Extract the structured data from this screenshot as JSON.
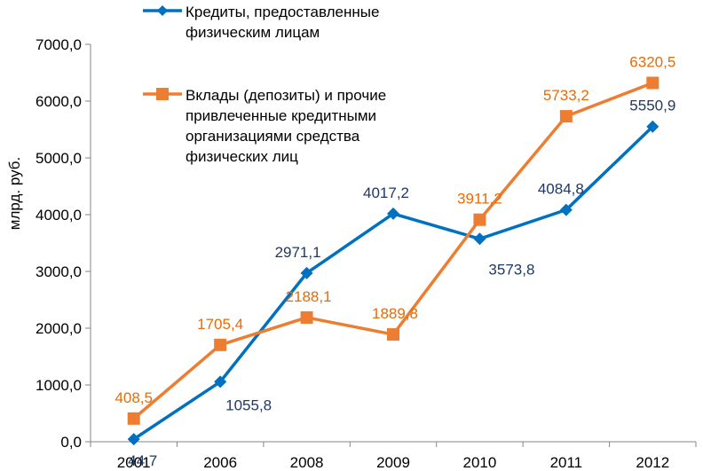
{
  "chart_data": {
    "type": "line",
    "categories": [
      "2001",
      "2006",
      "2008",
      "2009",
      "2010",
      "2011",
      "2012"
    ],
    "ylabel": "млрд. руб.",
    "ylim": [
      0,
      7000
    ],
    "yticks": [
      0,
      1000,
      2000,
      3000,
      4000,
      5000,
      6000,
      7000
    ],
    "ytick_labels": [
      "0,0",
      "1000,0",
      "2000,0",
      "3000,0",
      "4000,0",
      "5000,0",
      "6000,0",
      "7000,0"
    ],
    "grid": false,
    "legend": "top-left",
    "series": [
      {
        "name_lines": [
          "Кредиты, предоставленные",
          "физическим лицам"
        ],
        "color": "#0070C0",
        "label_color": "#1F3864",
        "marker": "diamond",
        "values": [
          44.7,
          1055.8,
          2971.1,
          4017.2,
          3573.8,
          4084.8,
          5550.9
        ],
        "labels": [
          "44,7",
          "1055,8",
          "2971,1",
          "4017,2",
          "3573,8",
          "4084,8",
          "5550,9"
        ]
      },
      {
        "name_lines": [
          "Вклады (депозиты) и прочие",
          "привлеченные кредитными",
          "организациями средства",
          "физических лиц"
        ],
        "color": "#ED7D31",
        "label_color": "#E46C0A",
        "marker": "square",
        "values": [
          408.5,
          1705.4,
          2188.1,
          1889.8,
          3911.2,
          5733.2,
          6320.5
        ],
        "labels": [
          "408,5",
          "1705,4",
          "2188,1",
          "1889,8",
          "3911,2",
          "5733,2",
          "6320,5"
        ]
      }
    ]
  }
}
